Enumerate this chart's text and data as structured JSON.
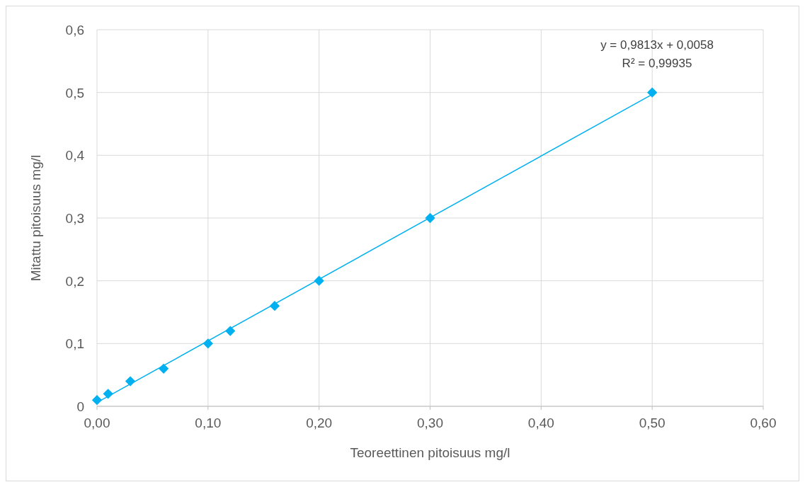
{
  "chart_data": {
    "type": "scatter",
    "xlabel": "Teoreettinen pitoisuus mg/l",
    "ylabel": "Mitattu pitoisuus mg/l",
    "xlim": [
      0,
      0.6
    ],
    "ylim": [
      0,
      0.6
    ],
    "xticks": [
      {
        "value": 0,
        "label": "0,00"
      },
      {
        "value": 0.1,
        "label": "0,10"
      },
      {
        "value": 0.2,
        "label": "0,20"
      },
      {
        "value": 0.3,
        "label": "0,30"
      },
      {
        "value": 0.4,
        "label": "0,40"
      },
      {
        "value": 0.5,
        "label": "0,50"
      },
      {
        "value": 0.6,
        "label": "0,60"
      }
    ],
    "yticks": [
      0,
      {
        "value": 0.1,
        "label": "0,1"
      },
      {
        "value": 0.2,
        "label": "0,2"
      },
      {
        "value": 0.3,
        "label": "0,3"
      },
      {
        "value": 0.4,
        "label": "0,4"
      },
      {
        "value": 0.5,
        "label": "0,5"
      },
      {
        "value": 0.6,
        "label": "0,6"
      }
    ],
    "grid": true,
    "series": [
      {
        "color": "#00b0f0",
        "marker": "diamond",
        "x": [
          0,
          0.01,
          0.03,
          0.06,
          0.1,
          0.12,
          0.16,
          0.2,
          0.3,
          0.5
        ],
        "values": [
          0.01,
          0.02,
          0.04,
          0.06,
          0.1,
          0.12,
          0.16,
          0.2,
          0.3,
          0.5
        ]
      },
      {
        "type": "line",
        "color": "#00b0f0",
        "marker": "none",
        "line_style": "solid",
        "x": [
          0,
          0.5
        ],
        "values": [
          0.006,
          0.497
        ]
      }
    ],
    "annotations": [
      "y = 0,9813x + 0,0058",
      "R² = 0,99935"
    ]
  }
}
